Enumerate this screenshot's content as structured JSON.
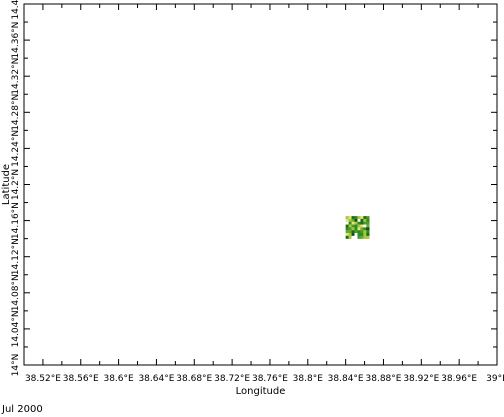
{
  "map": {
    "xlabel": "Longitude",
    "ylabel": "Latitude",
    "date": "Jul 2000",
    "x_ticks": [
      "38.52°E",
      "38.56°E",
      "38.6°E",
      "38.64°E",
      "38.68°E",
      "38.72°E",
      "38.76°E",
      "38.8°E",
      "38.84°E",
      "38.88°E",
      "38.92°E",
      "38.96°E",
      "39°E"
    ],
    "y_ticks": [
      "14°N",
      "14.04°N",
      "14.08°N",
      "14.12°N",
      "14.16°N",
      "14.2°N",
      "14.24°N",
      "14.28°N",
      "14.32°N",
      "14.36°N",
      "14.4°N"
    ],
    "x_range": [
      38.5,
      39.0
    ],
    "y_range": [
      14.0,
      14.4
    ],
    "data_patch": {
      "lon_range": [
        38.84,
        38.865
      ],
      "lat_range": [
        14.14,
        14.165
      ],
      "colors": [
        "#1f6b1a",
        "#2e8b22",
        "#6aa631",
        "#a7c83a",
        "#e1e47a",
        "#ffffff",
        "#0d4f10",
        "#4c9a2a"
      ]
    }
  }
}
